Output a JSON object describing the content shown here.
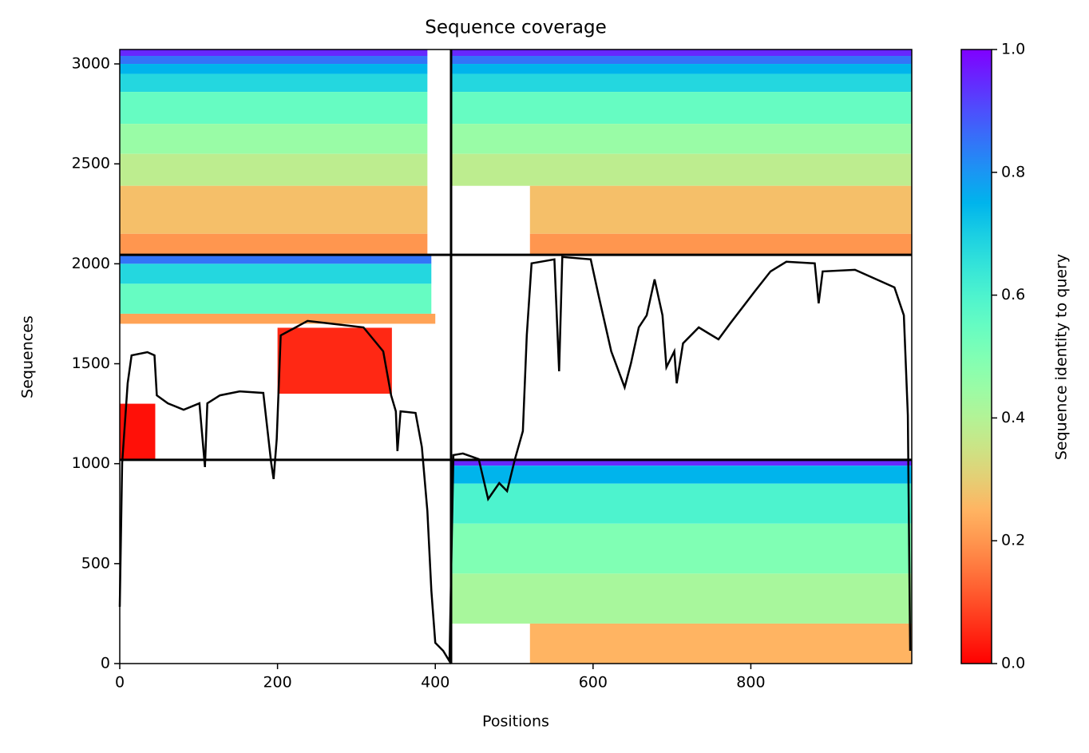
{
  "chart_data": {
    "type": "heatmap",
    "title": "Sequence coverage",
    "xlabel": "Positions",
    "ylabel": "Sequences",
    "colorbar_label": "Sequence identity to query",
    "colormap": "rainbow_r",
    "xlim": [
      0,
      1004
    ],
    "ylim": [
      0,
      3072
    ],
    "xticks": [
      0,
      200,
      400,
      600,
      800
    ],
    "yticks": [
      0,
      500,
      1000,
      1500,
      2000,
      2500,
      3000
    ],
    "clim": [
      0,
      1
    ],
    "cticks": [
      {
        "value": 0,
        "label": "0.0"
      },
      0.2,
      0.4,
      0.6,
      0.8,
      {
        "value": 1,
        "label": "1.0"
      }
    ],
    "separators": {
      "x": [
        420
      ],
      "y": [
        1019,
        2045
      ]
    },
    "blocks": [
      {
        "x": [
          0,
          390
        ],
        "y": [
          3040,
          3072
        ],
        "identity": 0.95
      },
      {
        "x": [
          420,
          1004
        ],
        "y": [
          3040,
          3072
        ],
        "identity": 0.95
      },
      {
        "x": [
          0,
          390
        ],
        "y": [
          3000,
          3040
        ],
        "identity": 0.85
      },
      {
        "x": [
          420,
          1004
        ],
        "y": [
          3000,
          3040
        ],
        "identity": 0.85
      },
      {
        "x": [
          0,
          390
        ],
        "y": [
          2950,
          3000
        ],
        "identity": 0.75
      },
      {
        "x": [
          420,
          1004
        ],
        "y": [
          2950,
          3000
        ],
        "identity": 0.75
      },
      {
        "x": [
          0,
          390
        ],
        "y": [
          2860,
          2950
        ],
        "identity": 0.68
      },
      {
        "x": [
          420,
          1004
        ],
        "y": [
          2860,
          2950
        ],
        "identity": 0.68
      },
      {
        "x": [
          0,
          390
        ],
        "y": [
          2700,
          2860
        ],
        "identity": 0.55
      },
      {
        "x": [
          420,
          1004
        ],
        "y": [
          2700,
          2860
        ],
        "identity": 0.55
      },
      {
        "x": [
          0,
          390
        ],
        "y": [
          2550,
          2700
        ],
        "identity": 0.45
      },
      {
        "x": [
          420,
          1004
        ],
        "y": [
          2550,
          2700
        ],
        "identity": 0.45
      },
      {
        "x": [
          0,
          390
        ],
        "y": [
          2390,
          2550
        ],
        "identity": 0.38
      },
      {
        "x": [
          420,
          1004
        ],
        "y": [
          2390,
          2550
        ],
        "identity": 0.38
      },
      {
        "x": [
          0,
          390
        ],
        "y": [
          2150,
          2390
        ],
        "identity": 0.27
      },
      {
        "x": [
          520,
          1004
        ],
        "y": [
          2150,
          2390
        ],
        "identity": 0.27
      },
      {
        "x": [
          0,
          390
        ],
        "y": [
          2045,
          2150
        ],
        "identity": 0.2
      },
      {
        "x": [
          520,
          1004
        ],
        "y": [
          2045,
          2150
        ],
        "identity": 0.2
      },
      {
        "x": [
          0,
          395
        ],
        "y": [
          2000,
          2045
        ],
        "identity": 0.85
      },
      {
        "x": [
          0,
          395
        ],
        "y": [
          1900,
          2000
        ],
        "identity": 0.68
      },
      {
        "x": [
          0,
          395
        ],
        "y": [
          1750,
          1900
        ],
        "identity": 0.55
      },
      {
        "x": [
          0,
          400
        ],
        "y": [
          1700,
          1750
        ],
        "identity": 0.22
      },
      {
        "x": [
          200,
          345
        ],
        "y": [
          1350,
          1680
        ],
        "identity": 0.05
      },
      {
        "x": [
          0,
          45
        ],
        "y": [
          1019,
          1300
        ],
        "identity": 0.02
      },
      {
        "x": [
          420,
          1004
        ],
        "y": [
          990,
          1019
        ],
        "identity": 0.95
      },
      {
        "x": [
          420,
          1004
        ],
        "y": [
          900,
          990
        ],
        "identity": 0.75
      },
      {
        "x": [
          420,
          1004
        ],
        "y": [
          700,
          900
        ],
        "identity": 0.6
      },
      {
        "x": [
          420,
          1004
        ],
        "y": [
          450,
          700
        ],
        "identity": 0.5
      },
      {
        "x": [
          420,
          1004
        ],
        "y": [
          200,
          450
        ],
        "identity": 0.42
      },
      {
        "x": [
          520,
          1004
        ],
        "y": [
          0,
          200
        ],
        "identity": 0.25
      }
    ],
    "coverage": {
      "x": [
        0,
        3,
        10,
        15,
        35,
        44,
        47,
        61,
        81,
        101,
        108,
        111,
        127,
        152,
        182,
        192,
        195,
        199,
        204,
        223,
        238,
        273,
        309,
        334,
        344,
        350,
        352,
        356,
        375,
        383,
        390,
        395,
        400,
        410,
        418,
        420,
        423,
        435,
        455,
        467,
        481,
        491,
        501,
        511,
        516,
        522,
        551,
        557,
        561,
        597,
        607,
        623,
        640,
        648,
        658,
        668,
        678,
        688,
        693,
        703,
        706,
        714,
        734,
        759,
        774,
        805,
        825,
        845,
        881,
        886,
        891,
        932,
        982,
        994,
        999,
        1002
      ],
      "y": [
        284,
        1003,
        1402,
        1542,
        1558,
        1542,
        1342,
        1302,
        1270,
        1302,
        983,
        1302,
        1342,
        1362,
        1354,
        1003,
        923,
        1123,
        1642,
        1682,
        1714,
        1698,
        1682,
        1562,
        1342,
        1262,
        1063,
        1262,
        1254,
        1083,
        763,
        364,
        104,
        64,
        12,
        443,
        1043,
        1051,
        1023,
        823,
        903,
        863,
        1023,
        1163,
        1642,
        2002,
        2022,
        1462,
        2034,
        2022,
        1842,
        1562,
        1382,
        1502,
        1682,
        1742,
        1922,
        1742,
        1482,
        1562,
        1402,
        1602,
        1682,
        1622,
        1702,
        1862,
        1962,
        2010,
        2002,
        1802,
        1962,
        1970,
        1882,
        1742,
        1242,
        64
      ],
      "color": "#000000"
    }
  }
}
